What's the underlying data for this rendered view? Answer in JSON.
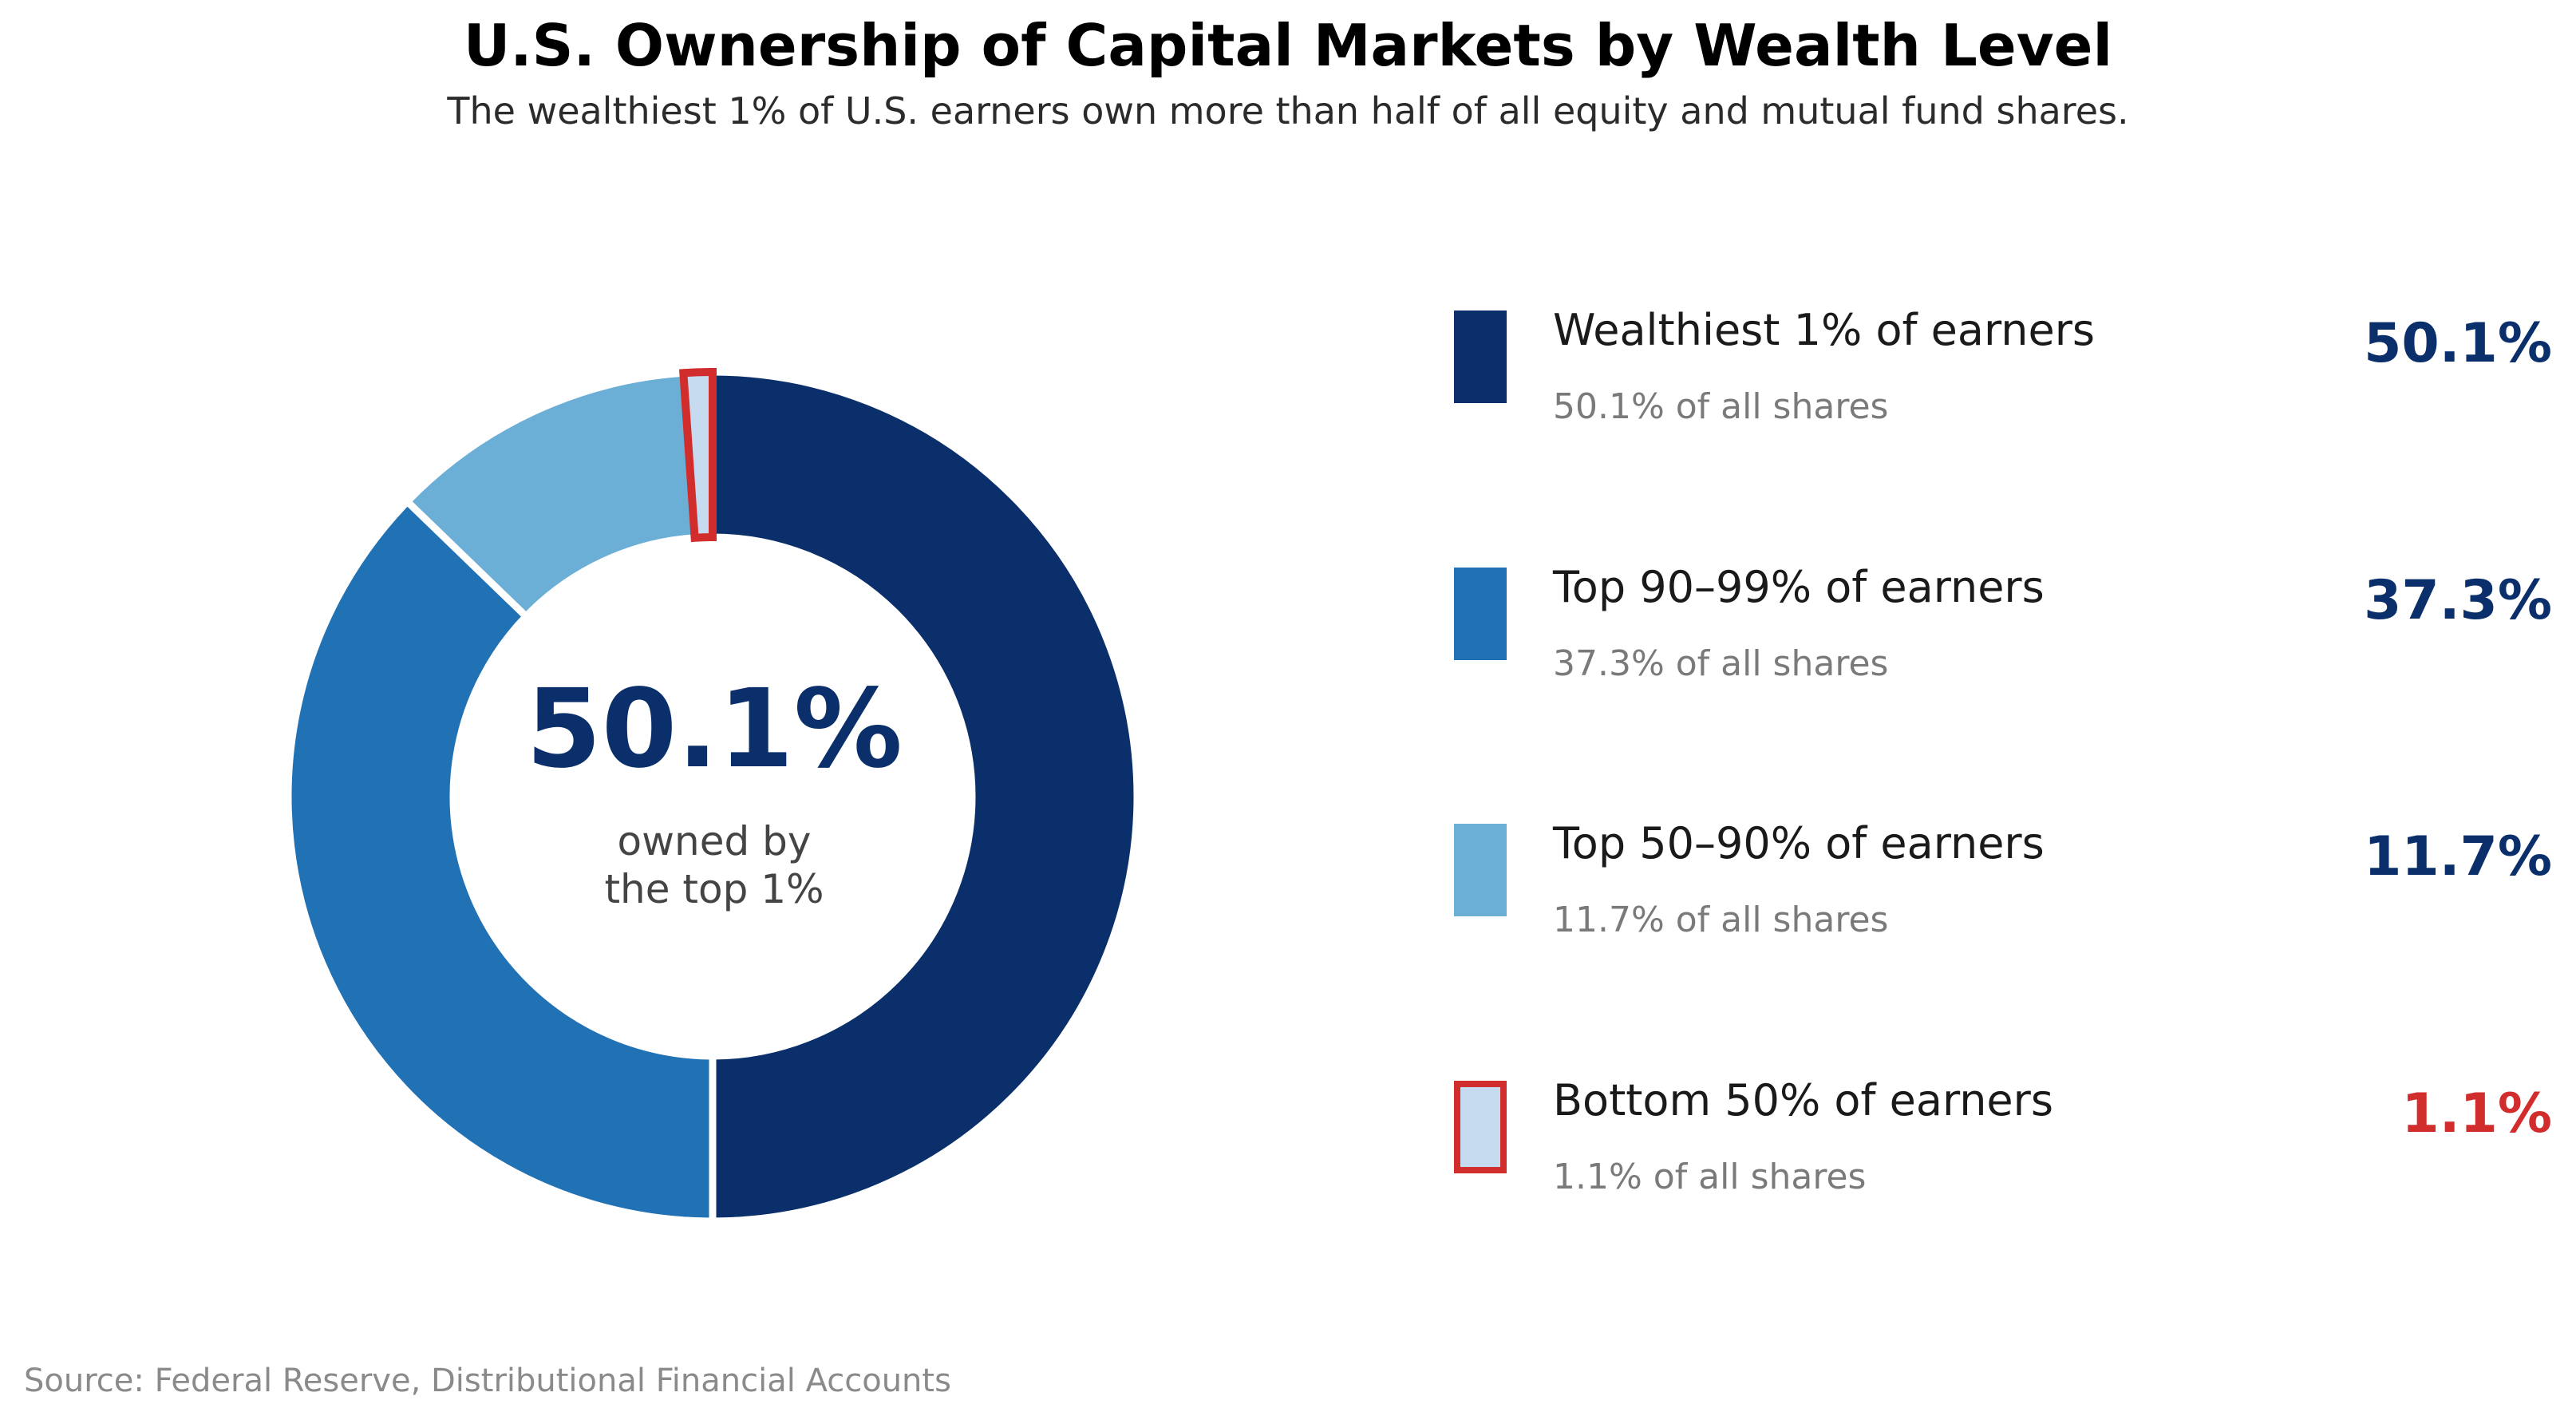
{
  "chart_data": {
    "type": "pie",
    "title": "U.S. Ownership of Capital Markets by Wealth Level",
    "subtitle": "The wealthiest 1% of U.S. earners own more than half of all equity and mutual fund shares.",
    "categories": [
      "Wealthiest 1% of earners",
      "Top 90–99% of earners",
      "Top 50–90% of earners",
      "Bottom 50% of earners"
    ],
    "values": [
      50.1,
      37.3,
      11.7,
      1.1
    ],
    "value_labels": [
      "50.1%",
      "37.3%",
      "11.7%",
      "1.1%"
    ],
    "sublabels": [
      "50.1% of all shares",
      "37.3% of all shares",
      "11.7% of all shares",
      "1.1% of all shares"
    ],
    "colors": [
      "#0a2f6b",
      "#2171b5",
      "#6baed6",
      "#c6dbef"
    ],
    "value_colors": [
      "#0a2f6b",
      "#0a2f6b",
      "#0a2f6b",
      "#d12d2d"
    ],
    "highlight": {
      "category": "Bottom 50% of earners",
      "outline_color": "#d12d2d"
    },
    "center": {
      "value": "50.1%",
      "caption_line1": "owned by",
      "caption_line2": "the top 1%"
    },
    "legend_placement": "right",
    "source": "Source: Federal Reserve, Distributional Financial Accounts"
  }
}
